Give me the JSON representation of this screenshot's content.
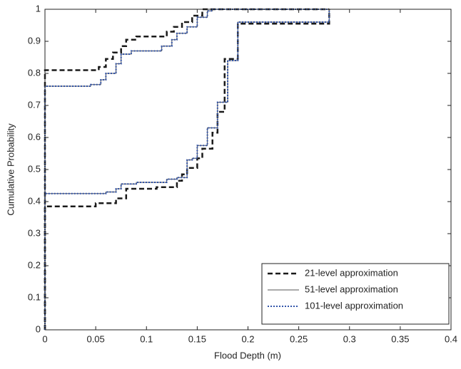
{
  "chart_data": {
    "type": "step",
    "x_label": "Flood Depth (m)",
    "y_label": "Cumulative Probability",
    "xlim": [
      0,
      0.4
    ],
    "ylim": [
      0,
      1
    ],
    "xticks": [
      0,
      0.05,
      0.1,
      0.15,
      0.2,
      0.25,
      0.3,
      0.35,
      0.4
    ],
    "yticks": [
      0,
      0.1,
      0.2,
      0.3,
      0.4,
      0.5,
      0.6,
      0.7,
      0.8,
      0.9,
      1
    ],
    "legend": "lower right",
    "step": "post",
    "series": [
      {
        "name": "21-level approximation",
        "color": "#1a1a1a",
        "style": "dashed",
        "bounds": [
          {
            "x": [
              0,
              0,
              0.053,
              0.06,
              0.067,
              0.075,
              0.08,
              0.09,
              0.12,
              0.127,
              0.135,
              0.145,
              0.155,
              0.28
            ],
            "values": [
              0,
              0.81,
              0.82,
              0.845,
              0.865,
              0.885,
              0.905,
              0.915,
              0.93,
              0.945,
              0.96,
              0.98,
              1,
              1
            ]
          },
          {
            "x": [
              0,
              0,
              0.05,
              0.07,
              0.08,
              0.11,
              0.13,
              0.135,
              0.14,
              0.15,
              0.155,
              0.165,
              0.17,
              0.177,
              0.19,
              0.28,
              0.28
            ],
            "values": [
              0,
              0.385,
              0.395,
              0.41,
              0.44,
              0.445,
              0.465,
              0.485,
              0.505,
              0.535,
              0.565,
              0.615,
              0.68,
              0.845,
              0.955,
              0.955,
              1
            ]
          }
        ]
      },
      {
        "name": "51-level approximation",
        "color": "#555555",
        "style": "solid",
        "bounds": [
          {
            "x": [
              0,
              0,
              0.045,
              0.055,
              0.06,
              0.07,
              0.075,
              0.085,
              0.115,
              0.125,
              0.13,
              0.14,
              0.15,
              0.16,
              0.165,
              0.28
            ],
            "values": [
              0,
              0.76,
              0.765,
              0.78,
              0.8,
              0.83,
              0.86,
              0.87,
              0.885,
              0.905,
              0.925,
              0.945,
              0.975,
              0.995,
              1,
              1
            ]
          },
          {
            "x": [
              0,
              0,
              0.06,
              0.07,
              0.075,
              0.09,
              0.12,
              0.13,
              0.14,
              0.145,
              0.15,
              0.16,
              0.17,
              0.18,
              0.19,
              0.28,
              0.28
            ],
            "values": [
              0,
              0.425,
              0.43,
              0.44,
              0.455,
              0.46,
              0.47,
              0.475,
              0.53,
              0.535,
              0.575,
              0.63,
              0.71,
              0.84,
              0.96,
              0.96,
              1
            ]
          }
        ]
      },
      {
        "name": "101-level approximation",
        "color": "#3355aa",
        "style": "dotted",
        "bounds": [
          {
            "x": [
              0,
              0,
              0.045,
              0.055,
              0.06,
              0.07,
              0.075,
              0.085,
              0.115,
              0.125,
              0.13,
              0.14,
              0.15,
              0.16,
              0.165,
              0.28
            ],
            "values": [
              0,
              0.76,
              0.765,
              0.78,
              0.8,
              0.83,
              0.86,
              0.87,
              0.885,
              0.905,
              0.925,
              0.945,
              0.975,
              0.995,
              1,
              1
            ]
          },
          {
            "x": [
              0,
              0,
              0.06,
              0.07,
              0.075,
              0.09,
              0.12,
              0.13,
              0.14,
              0.145,
              0.15,
              0.16,
              0.17,
              0.18,
              0.19,
              0.28,
              0.28
            ],
            "values": [
              0,
              0.425,
              0.43,
              0.44,
              0.455,
              0.46,
              0.47,
              0.475,
              0.53,
              0.535,
              0.575,
              0.63,
              0.71,
              0.84,
              0.96,
              0.96,
              1
            ]
          }
        ]
      }
    ]
  }
}
